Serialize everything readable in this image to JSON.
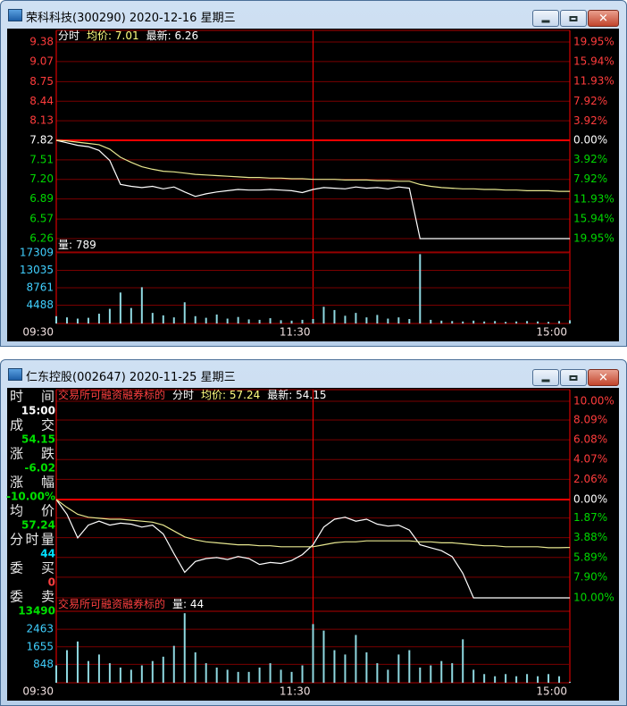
{
  "windows": [
    {
      "title": "荣科科技(300290) 2020-12-16 星期三",
      "header": [
        {
          "text": "分时",
          "color": "#ffffff"
        },
        {
          "text": "均价: 7.01",
          "color": "#ffff80"
        },
        {
          "text": "最新: 6.26",
          "color": "#ffffff"
        }
      ],
      "chart": {
        "type": "line",
        "x": [
          "09:30",
          "09:35",
          "09:40",
          "09:45",
          "09:50",
          "09:55",
          "10:00",
          "10:05",
          "10:10",
          "10:15",
          "10:20",
          "10:25",
          "10:30",
          "10:35",
          "10:40",
          "10:45",
          "10:50",
          "10:55",
          "11:00",
          "11:05",
          "11:10",
          "11:15",
          "11:20",
          "11:25",
          "11:30",
          "13:05",
          "13:10",
          "13:15",
          "13:20",
          "13:25",
          "13:30",
          "13:35",
          "13:40",
          "13:45",
          "13:50",
          "13:55",
          "14:00",
          "14:05",
          "14:10",
          "14:15",
          "14:20",
          "14:25",
          "14:30",
          "14:35",
          "14:40",
          "14:45",
          "14:50",
          "14:55",
          "15:00"
        ],
        "xticks": [
          "09:30",
          "11:30",
          "15:00"
        ],
        "ylim": [
          6.26,
          9.38
        ],
        "yticks": [
          9.38,
          9.07,
          8.75,
          8.44,
          8.13,
          7.82,
          7.51,
          {
            "value": 7.2,
            "label": "7.20"
          },
          6.89,
          6.57,
          6.26
        ],
        "y2lim": [
          -19.95,
          19.95
        ],
        "y2ticks": [
          {
            "value": 19.95,
            "label": "19.95%"
          },
          {
            "value": 15.94,
            "label": "15.94%"
          },
          {
            "value": 11.93,
            "label": "11.93%"
          },
          {
            "value": 7.92,
            "label": "7.92%"
          },
          {
            "value": 3.92,
            "label": "3.92%"
          },
          {
            "value": 0,
            "label": "0.00%"
          },
          {
            "value": -3.92,
            "label": "3.92%"
          },
          {
            "value": -7.92,
            "label": "7.92%"
          },
          {
            "value": -11.93,
            "label": "11.93%"
          },
          {
            "value": -15.94,
            "label": "15.94%"
          },
          {
            "value": -19.95,
            "label": "19.95%"
          }
        ],
        "grid": true,
        "series": [
          {
            "color": "#ffffff",
            "values": [
              7.82,
              7.78,
              7.74,
              7.72,
              7.66,
              7.5,
              7.12,
              7.09,
              7.07,
              7.09,
              7.05,
              7.08,
              7.0,
              6.93,
              6.97,
              7.0,
              7.02,
              7.04,
              7.03,
              7.03,
              7.04,
              7.03,
              7.02,
              6.99,
              7.04,
              7.07,
              7.06,
              7.05,
              7.08,
              7.06,
              7.07,
              7.05,
              7.08,
              7.06,
              6.26,
              6.26,
              6.26,
              6.26,
              6.26,
              6.26,
              6.26,
              6.26,
              6.26,
              6.26,
              6.26,
              6.26,
              6.26,
              6.26,
              6.26
            ]
          },
          {
            "color": "#e8e890",
            "values": [
              7.82,
              7.81,
              7.79,
              7.77,
              7.75,
              7.68,
              7.55,
              7.47,
              7.4,
              7.36,
              7.33,
              7.32,
              7.3,
              7.28,
              7.27,
              7.26,
              7.25,
              7.24,
              7.23,
              7.23,
              7.22,
              7.22,
              7.21,
              7.21,
              7.2,
              7.2,
              7.2,
              7.19,
              7.19,
              7.19,
              7.18,
              7.18,
              7.17,
              7.17,
              7.12,
              7.09,
              7.07,
              7.06,
              7.05,
              7.05,
              7.04,
              7.04,
              7.03,
              7.03,
              7.02,
              7.02,
              7.02,
              7.01,
              7.01
            ]
          }
        ]
      },
      "volume": {
        "type": "bar",
        "header": [
          {
            "text": "量: 789",
            "color": "#ffffff"
          }
        ],
        "color": "#8fd8e0",
        "values": [
          1800,
          1500,
          1200,
          1400,
          2400,
          3600,
          7600,
          3800,
          8900,
          2600,
          2000,
          1500,
          5200,
          1800,
          1400,
          2200,
          1200,
          1600,
          1000,
          900,
          1300,
          800,
          700,
          900,
          1100,
          4100,
          3300,
          1900,
          2600,
          1500,
          2100,
          1200,
          1500,
          1100,
          17000,
          900,
          700,
          600,
          500,
          700,
          500,
          600,
          400,
          500,
          600,
          500,
          400,
          600,
          789
        ],
        "ylim": [
          0,
          17522
        ],
        "yticks": [
          17309,
          13035,
          8761,
          4488
        ]
      }
    },
    {
      "title": "仁东控股(002647) 2020-11-25 星期三",
      "header": [
        {
          "text": "交易所可融资融券标的",
          "color": "#ff4040"
        },
        {
          "text": "分时",
          "color": "#ffffff"
        },
        {
          "text": "均价: 57.24",
          "color": "#ffff80"
        },
        {
          "text": "最新: 54.15",
          "color": "#ffffff"
        }
      ],
      "info": [
        {
          "label": "时间",
          "value": "15:00",
          "color": "#ffffff"
        },
        {
          "label": "成交",
          "value": "54.15",
          "color": "#00e000"
        },
        {
          "label": "涨跌",
          "value": "-6.02",
          "color": "#00e000"
        },
        {
          "label": "涨幅",
          "value": "-10.00%",
          "color": "#00e000"
        },
        {
          "label": "均价",
          "value": "57.24",
          "color": "#00e000"
        },
        {
          "label": "分时量",
          "value": "44",
          "color": "#00e0ff"
        },
        {
          "label": "委买",
          "value": "0",
          "color": "#ff4040"
        },
        {
          "label": "委卖",
          "value": "13490",
          "color": "#00e000"
        }
      ],
      "chart": {
        "type": "line",
        "x": [
          "09:30",
          "09:35",
          "09:40",
          "09:45",
          "09:50",
          "09:55",
          "10:00",
          "10:05",
          "10:10",
          "10:15",
          "10:20",
          "10:25",
          "10:30",
          "10:35",
          "10:40",
          "10:45",
          "10:50",
          "10:55",
          "11:00",
          "11:05",
          "11:10",
          "11:15",
          "11:20",
          "11:25",
          "11:30",
          "13:05",
          "13:10",
          "13:15",
          "13:20",
          "13:25",
          "13:30",
          "13:35",
          "13:40",
          "13:45",
          "13:50",
          "13:55",
          "14:00",
          "14:05",
          "14:10",
          "14:15",
          "14:20",
          "14:25",
          "14:30",
          "14:35",
          "14:40",
          "14:45",
          "14:50",
          "14:55",
          "15:00"
        ],
        "xticks": [
          "09:30",
          "11:30",
          "15:00"
        ],
        "y2lim": [
          -10,
          10
        ],
        "y2ticks": [
          {
            "value": 10,
            "label": "10.00%"
          },
          {
            "value": 8.09,
            "label": "8.09%"
          },
          {
            "value": 6.08,
            "label": "6.08%"
          },
          {
            "value": 4.07,
            "label": "4.07%"
          },
          {
            "value": 2.06,
            "label": "2.06%"
          },
          {
            "value": 0,
            "label": "0.00%"
          },
          {
            "value": -1.87,
            "label": "1.87%"
          },
          {
            "value": -3.88,
            "label": "3.88%"
          },
          {
            "value": -5.89,
            "label": "5.89%"
          },
          {
            "value": -7.9,
            "label": "7.90%"
          },
          {
            "value": -10,
            "label": "10.00%"
          }
        ],
        "grid": true,
        "series": [
          {
            "color": "#ffffff",
            "axis": "y2",
            "values": [
              0,
              -1.5,
              -3.9,
              -2.6,
              -2.2,
              -2.6,
              -2.4,
              -2.5,
              -2.8,
              -2.6,
              -3.5,
              -5.5,
              -7.4,
              -6.3,
              -6.0,
              -5.9,
              -6.1,
              -5.8,
              -6.0,
              -6.6,
              -6.4,
              -6.5,
              -6.2,
              -5.6,
              -4.6,
              -2.8,
              -2.0,
              -1.8,
              -2.2,
              -2.0,
              -2.5,
              -2.7,
              -2.6,
              -3.1,
              -4.6,
              -4.9,
              -5.2,
              -5.8,
              -7.5,
              -10,
              -10,
              -10,
              -10,
              -10,
              -10,
              -10,
              -10,
              -10,
              -10
            ]
          },
          {
            "color": "#e8e890",
            "axis": "y2",
            "values": [
              0,
              -0.8,
              -1.5,
              -1.8,
              -1.9,
              -2.0,
              -2.0,
              -2.1,
              -2.2,
              -2.3,
              -2.6,
              -3.2,
              -3.8,
              -4.1,
              -4.3,
              -4.4,
              -4.5,
              -4.6,
              -4.6,
              -4.7,
              -4.7,
              -4.8,
              -4.8,
              -4.8,
              -4.8,
              -4.6,
              -4.4,
              -4.3,
              -4.3,
              -4.2,
              -4.2,
              -4.2,
              -4.2,
              -4.2,
              -4.3,
              -4.3,
              -4.4,
              -4.4,
              -4.5,
              -4.6,
              -4.7,
              -4.7,
              -4.8,
              -4.8,
              -4.8,
              -4.8,
              -4.9,
              -4.9,
              -4.87
            ]
          }
        ]
      },
      "volume": {
        "type": "bar",
        "header": [
          {
            "text": "交易所可融资融券标的",
            "color": "#ff4040"
          },
          {
            "text": "量: 44",
            "color": "#ffffff"
          }
        ],
        "color": "#8fd8e0",
        "values": [
          800,
          1500,
          1900,
          1000,
          1300,
          900,
          700,
          600,
          800,
          1000,
          1200,
          1700,
          3200,
          1400,
          900,
          700,
          600,
          500,
          500,
          700,
          900,
          600,
          500,
          800,
          2700,
          2400,
          1500,
          1300,
          2200,
          1400,
          900,
          600,
          1300,
          1500,
          700,
          800,
          1000,
          900,
          2000,
          600,
          400,
          300,
          400,
          300,
          400,
          300,
          400,
          300,
          44
        ],
        "ylim": [
          0,
          3290
        ],
        "yticks": [
          2463,
          1655,
          848
        ]
      }
    }
  ]
}
